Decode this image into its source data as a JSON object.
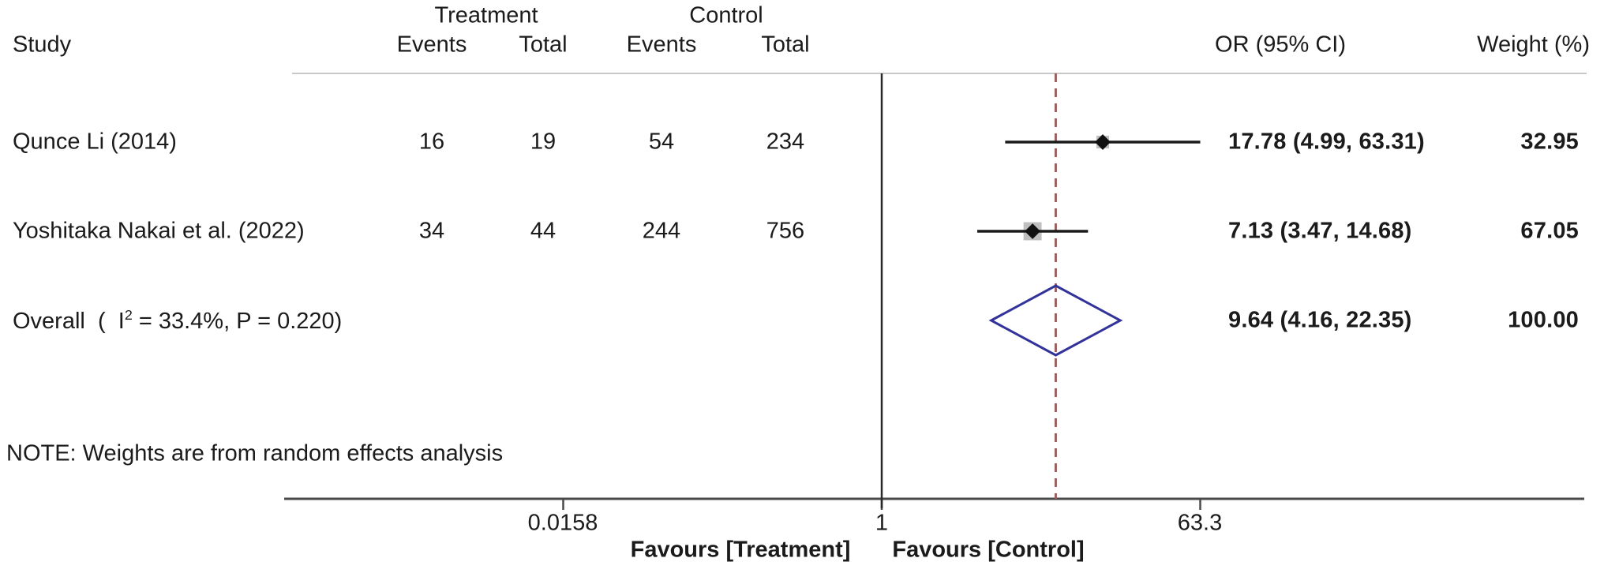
{
  "table": {
    "study_header": "Study",
    "group_headers": {
      "treatment": "Treatment",
      "control": "Control"
    },
    "col_headers": {
      "t_events": "Events",
      "t_total": "Total",
      "c_events": "Events",
      "c_total": "Total"
    },
    "or_header": "OR (95% CI)",
    "weight_header": "Weight (%)"
  },
  "rows": [
    {
      "study": "Qunce Li (2014)",
      "t_events": "16",
      "t_total": "19",
      "c_events": "54",
      "c_total": "234",
      "or_ci": "17.78 (4.99, 63.31)",
      "weight": "32.95"
    },
    {
      "study": "Yoshitaka Nakai et al. (2022)",
      "t_events": "34",
      "t_total": "44",
      "c_events": "244",
      "c_total": "756",
      "or_ci": "7.13 (3.47, 14.68)",
      "weight": "67.05"
    }
  ],
  "overall": {
    "label_prefix": "Overall  (  I",
    "label_sup": "2",
    "label_suffix": " = 33.4%, P = 0.220)",
    "or_ci": "9.64 (4.16, 22.35)",
    "weight": "100.00"
  },
  "note": "NOTE: Weights are from random effects analysis",
  "axis": {
    "tick_labels": [
      "0.0158",
      "1",
      "63.3"
    ],
    "favours_left": "Favours [Treatment]",
    "favours_right": "Favours [Control]"
  },
  "chart_data": {
    "type": "forest",
    "effect_measure": "OR",
    "scale": "log10",
    "model": "random effects",
    "studies": [
      {
        "name": "Qunce Li (2014)",
        "treatment": {
          "events": 16,
          "total": 19
        },
        "control": {
          "events": 54,
          "total": 234
        },
        "or": 17.78,
        "ci_low": 4.99,
        "ci_high": 63.31,
        "weight_pct": 32.95
      },
      {
        "name": "Yoshitaka Nakai et al. (2022)",
        "treatment": {
          "events": 34,
          "total": 44
        },
        "control": {
          "events": 244,
          "total": 756
        },
        "or": 7.13,
        "ci_low": 3.47,
        "ci_high": 14.68,
        "weight_pct": 67.05
      }
    ],
    "overall": {
      "or": 9.64,
      "ci_low": 4.16,
      "ci_high": 22.35,
      "weight_pct": 100.0,
      "i_squared_pct": 33.4,
      "p_value": 0.22
    },
    "null_line_value": 1,
    "x_ticks": [
      0.0158,
      1,
      63.3
    ],
    "xlabel_left": "Favours [Treatment]",
    "xlabel_right": "Favours [Control]",
    "colors": {
      "marker": "#111111",
      "weight_box": "#a9a9a9",
      "whisker": "#1a1a1a",
      "diamond": "#32329b",
      "dashed_line": "#9a5f5f",
      "axis": "#4a4a4a",
      "null_line": "#2a2a2a",
      "header_rule": "#c9c9c9"
    }
  }
}
